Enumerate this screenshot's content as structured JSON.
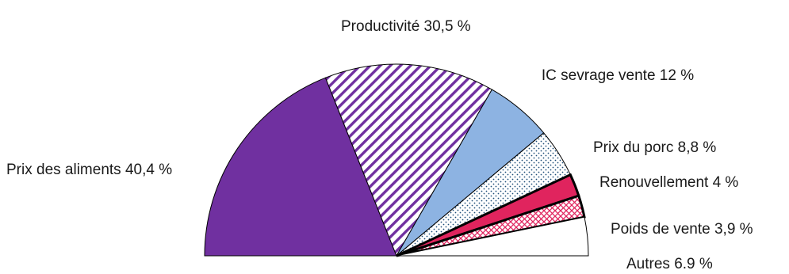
{
  "chart_data": {
    "type": "pie",
    "title": "",
    "layout": "half-pie",
    "slices": [
      {
        "label": "Prix des aliments 40,4 %",
        "value": 40.4,
        "pattern": "solid",
        "color": "#7030a0"
      },
      {
        "label": "Productivité 30,5 %",
        "value": 30.5,
        "pattern": "diagonal-stripes",
        "color": "#7030a0"
      },
      {
        "label": "IC sevrage vente 12 %",
        "value": 12.0,
        "pattern": "solid",
        "color": "#8db3e2"
      },
      {
        "label": "Prix du porc 8,8 %",
        "value": 8.8,
        "pattern": "dots",
        "color": "#1f4e79"
      },
      {
        "label": "Renouvellement 4 %",
        "value": 4.0,
        "pattern": "solid",
        "color": "#e0245e"
      },
      {
        "label": "Poids de vente 3,9 %",
        "value": 3.9,
        "pattern": "crosshatch",
        "color": "#e0245e"
      },
      {
        "label": "Autres 6.9 %",
        "value": 6.9,
        "pattern": "solid",
        "color": "#ffffff"
      }
    ]
  }
}
